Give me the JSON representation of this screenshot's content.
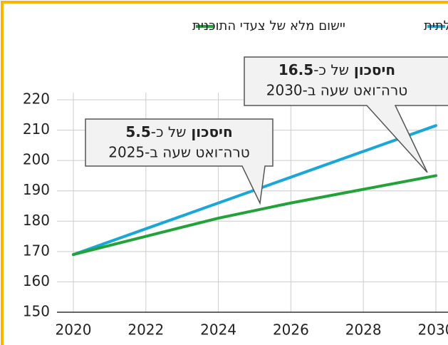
{
  "chart_data": {
    "type": "line",
    "x": [
      2020,
      2022,
      2024,
      2026,
      2028,
      2030
    ],
    "series": [
      {
        "name": "ללא שינוי בפעילות הממשלתית",
        "color": "#1ba6d8",
        "values": [
          169,
          177.5,
          186,
          194.5,
          203,
          211.5
        ]
      },
      {
        "name": "יישום מלא של צעדי התוכנית",
        "color": "#22a33a",
        "values": [
          169,
          175,
          181,
          186,
          190.5,
          195
        ]
      }
    ],
    "xlim": [
      2020,
      2030
    ],
    "xticks": [
      2020,
      2022,
      2024,
      2026,
      2028,
      2030
    ],
    "ylim": [
      150,
      220
    ],
    "yticks": [
      150,
      160,
      170,
      180,
      190,
      200,
      210,
      220
    ],
    "grid": true,
    "annotations": [
      {
        "line1": [
          "חיסכון",
          "של כ-",
          "5.5"
        ],
        "line2": "טרה־ואט שעה ב-2025"
      },
      {
        "line1": [
          "חיסכון",
          "של כ-",
          "16.5"
        ],
        "line2": "טרה־ואט שעה ב-2030"
      }
    ]
  }
}
